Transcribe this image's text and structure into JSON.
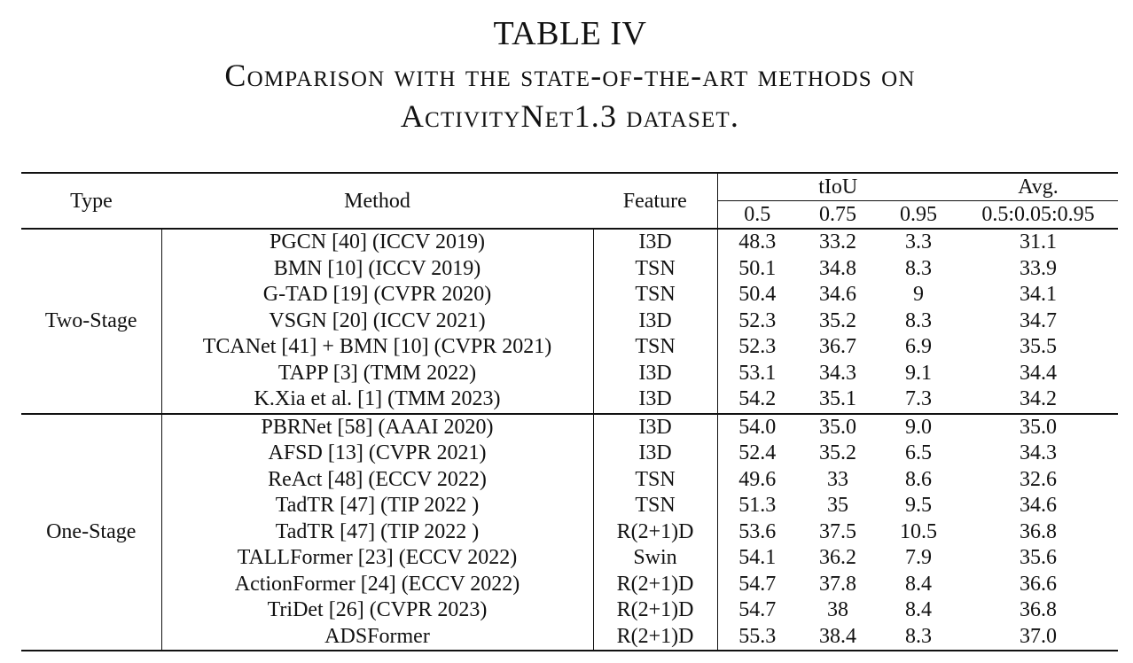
{
  "caption": {
    "title": "TABLE IV",
    "line1": "Comparison with the state-of-the-art methods on",
    "line2": "ActivityNet1.3 dataset."
  },
  "table": {
    "headers": {
      "type": "Type",
      "method": "Method",
      "feature": "Feature",
      "tiou": "tIoU",
      "avg": "Avg.",
      "t05": "0.5",
      "t075": "0.75",
      "t095": "0.95",
      "avg_range": "0.5:0.05:0.95"
    },
    "groups": [
      {
        "type": "Two-Stage",
        "rows": [
          {
            "method": "PGCN [40] (ICCV 2019)",
            "feature": "I3D",
            "t05": "48.3",
            "t075": "33.2",
            "t095": "3.3",
            "avg": "31.1"
          },
          {
            "method": "BMN [10] (ICCV 2019)",
            "feature": "TSN",
            "t05": "50.1",
            "t075": "34.8",
            "t095": "8.3",
            "avg": "33.9"
          },
          {
            "method": "G-TAD [19] (CVPR 2020)",
            "feature": "TSN",
            "t05": "50.4",
            "t075": "34.6",
            "t095": "9",
            "avg": "34.1"
          },
          {
            "method": "VSGN [20] (ICCV 2021)",
            "feature": "I3D",
            "t05": "52.3",
            "t075": "35.2",
            "t095": "8.3",
            "avg": "34.7"
          },
          {
            "method": "TCANet [41] + BMN [10] (CVPR 2021)",
            "feature": "TSN",
            "t05": "52.3",
            "t075": "36.7",
            "t095": "6.9",
            "avg": "35.5"
          },
          {
            "method": "TAPP [3] (TMM 2022)",
            "feature": "I3D",
            "t05": "53.1",
            "t075": "34.3",
            "t095": "9.1",
            "avg": "34.4"
          },
          {
            "method": "K.Xia et al. [1] (TMM 2023)",
            "feature": "I3D",
            "t05": "54.2",
            "t075": "35.1",
            "t095": "7.3",
            "avg": "34.2"
          }
        ]
      },
      {
        "type": "One-Stage",
        "rows": [
          {
            "method": "PBRNet [58] (AAAI 2020)",
            "feature": "I3D",
            "t05": "54.0",
            "t075": "35.0",
            "t095": "9.0",
            "avg": "35.0"
          },
          {
            "method": "AFSD [13] (CVPR 2021)",
            "feature": "I3D",
            "t05": "52.4",
            "t075": "35.2",
            "t095": "6.5",
            "avg": "34.3"
          },
          {
            "method": "ReAct [48] (ECCV 2022)",
            "feature": "TSN",
            "t05": "49.6",
            "t075": "33",
            "t095": "8.6",
            "avg": "32.6"
          },
          {
            "method": "TadTR [47] (TIP 2022 )",
            "feature": "TSN",
            "t05": "51.3",
            "t075": "35",
            "t095": "9.5",
            "avg": "34.6"
          },
          {
            "method": "TadTR [47] (TIP 2022 )",
            "feature": "R(2+1)D",
            "t05": "53.6",
            "t075": "37.5",
            "t095": "10.5",
            "avg": "36.8"
          },
          {
            "method": "TALLFormer [23] (ECCV 2022)",
            "feature": "Swin",
            "t05": "54.1",
            "t075": "36.2",
            "t095": "7.9",
            "avg": "35.6"
          },
          {
            "method": "ActionFormer [24] (ECCV 2022)",
            "feature": "R(2+1)D",
            "t05": "54.7",
            "t075": "37.8",
            "t095": "8.4",
            "avg": "36.6"
          },
          {
            "method": "TriDet [26] (CVPR 2023)",
            "feature": "R(2+1)D",
            "t05": "54.7",
            "t075": "38",
            "t095": "8.4",
            "avg": "36.8"
          },
          {
            "method": "ADSFormer",
            "feature": "R(2+1)D",
            "t05": "55.3",
            "t075": "38.4",
            "t095": "8.3",
            "avg": "37.0"
          }
        ]
      }
    ]
  }
}
